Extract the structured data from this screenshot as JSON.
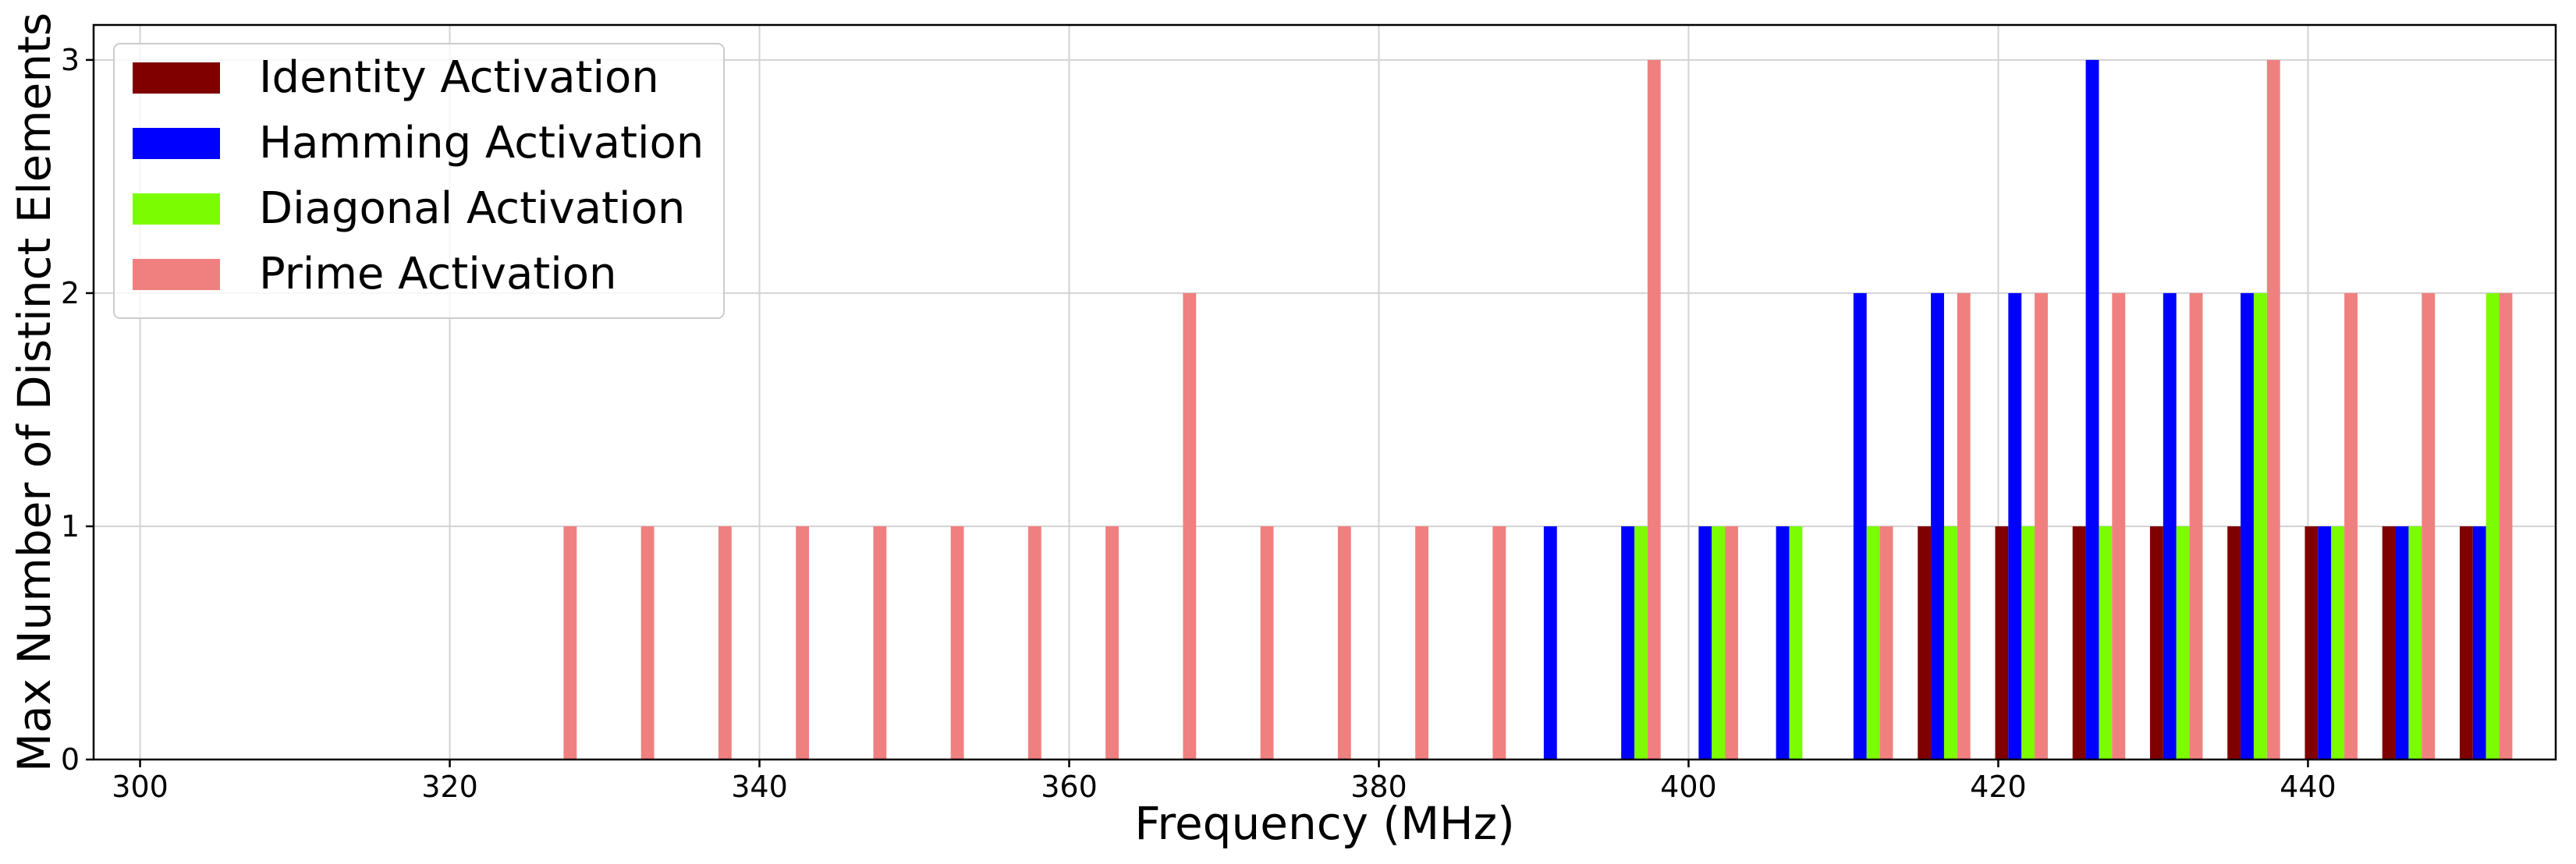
{
  "chart_data": {
    "type": "bar",
    "title": "",
    "xlabel": "Frequency (MHz)",
    "ylabel": "Max Number of Distinct Elements",
    "xlim": [
      297,
      456
    ],
    "ylim": [
      0,
      3.15
    ],
    "xticks": [
      300,
      320,
      340,
      360,
      380,
      400,
      420,
      440
    ],
    "yticks": [
      0,
      1,
      2,
      3
    ],
    "grid": true,
    "legend_position": "top-left",
    "bar_width_mhz": 0.85,
    "x_offset_mhz": 1.5,
    "categories": [
      325,
      330,
      335,
      340,
      345,
      350,
      355,
      360,
      365,
      370,
      375,
      380,
      385,
      390,
      395,
      400,
      405,
      410,
      415,
      420,
      425,
      430,
      435,
      440,
      445,
      450
    ],
    "series": [
      {
        "name": "Identity Activation",
        "color": "#800000",
        "values": [
          0,
          0,
          0,
          0,
          0,
          0,
          0,
          0,
          0,
          0,
          0,
          0,
          0,
          0,
          0,
          0,
          0,
          0,
          1,
          1,
          1,
          1,
          1,
          1,
          1,
          1
        ]
      },
      {
        "name": "Hamming Activation",
        "color": "#0000ff",
        "values": [
          0,
          0,
          0,
          0,
          0,
          0,
          0,
          0,
          0,
          0,
          0,
          0,
          0,
          1,
          1,
          1,
          1,
          2,
          2,
          2,
          3,
          2,
          2,
          1,
          1,
          1
        ]
      },
      {
        "name": "Diagonal Activation",
        "color": "#7cfc00",
        "values": [
          0,
          0,
          0,
          0,
          0,
          0,
          0,
          0,
          0,
          0,
          0,
          0,
          0,
          0,
          1,
          1,
          1,
          1,
          1,
          1,
          1,
          1,
          2,
          1,
          1,
          2
        ]
      },
      {
        "name": "Prime Activation",
        "color": "#f08080",
        "values": [
          1,
          1,
          1,
          1,
          1,
          1,
          1,
          1,
          2,
          1,
          1,
          1,
          1,
          0,
          3,
          1,
          0,
          1,
          2,
          2,
          2,
          2,
          3,
          2,
          2,
          2
        ]
      }
    ]
  }
}
